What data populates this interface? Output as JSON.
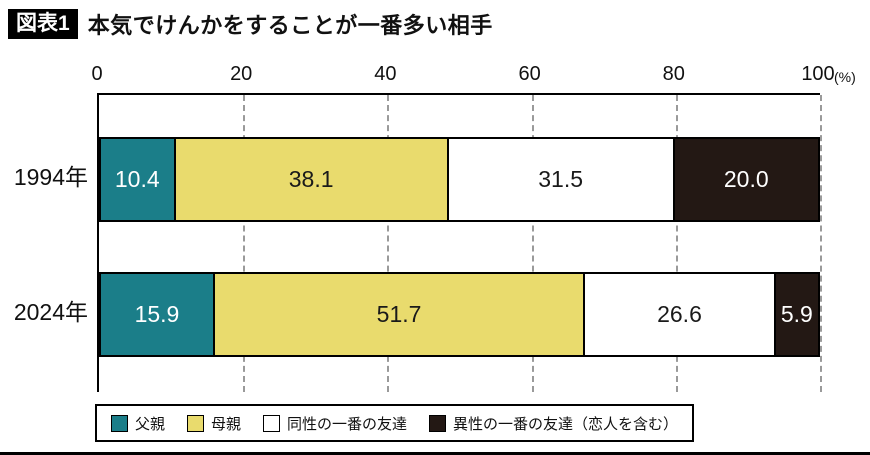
{
  "header": {
    "badge": "図表1",
    "title": "本気でけんかをすることが一番多い相手"
  },
  "chart_data": {
    "type": "bar",
    "stacked": true,
    "orientation": "horizontal",
    "title": "本気でけんかをすることが一番多い相手",
    "categories": [
      "1994年",
      "2024年"
    ],
    "series": [
      {
        "name": "父親",
        "color": "#1b7e89",
        "text_color": "#ffffff",
        "values": [
          10.4,
          15.9
        ]
      },
      {
        "name": "母親",
        "color": "#e9db6d",
        "text_color": "#1a1a1a",
        "values": [
          38.1,
          51.7
        ]
      },
      {
        "name": "同性の一番の友達",
        "color": "#ffffff",
        "text_color": "#1a1a1a",
        "values": [
          31.5,
          26.6
        ]
      },
      {
        "name": "異性の一番の友達（恋人を含む）",
        "color": "#231814",
        "text_color": "#ffffff",
        "values": [
          20.0,
          5.9
        ]
      }
    ],
    "x_ticks": [
      0,
      20,
      40,
      60,
      80,
      100
    ],
    "x_unit": "(%)",
    "xlim": [
      0,
      100
    ],
    "grid": "dashed-vertical",
    "legend_position": "bottom",
    "gridline_color": "#9a9a9a"
  }
}
